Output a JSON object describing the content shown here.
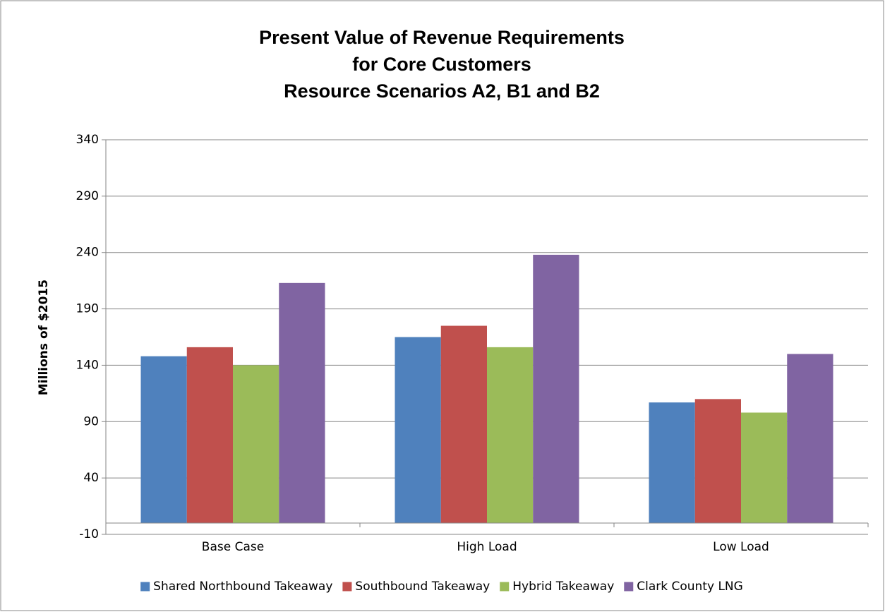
{
  "chart_data": {
    "type": "bar",
    "title": [
      "Present Value of Revenue Requirements",
      "for Core Customers",
      "Resource Scenarios A2, B1 and B2"
    ],
    "y_label": "Millions of $2015",
    "categories": [
      "Base Case",
      "High Load",
      "Low Load"
    ],
    "series": [
      {
        "name": "Shared Northbound Takeaway",
        "color": "#4f81bd",
        "values": [
          148,
          165,
          107
        ]
      },
      {
        "name": "Southbound Takeaway",
        "color": "#c0504d",
        "values": [
          156,
          175,
          110
        ]
      },
      {
        "name": "Hybrid Takeaway",
        "color": "#9bbb59",
        "values": [
          140,
          156,
          98
        ]
      },
      {
        "name": "Clark County LNG",
        "color": "#8064a2",
        "values": [
          213,
          238,
          150
        ]
      }
    ],
    "ylim": [
      -10,
      340
    ],
    "yticks": [
      -10,
      40,
      90,
      140,
      190,
      240,
      290,
      340
    ],
    "grid": true,
    "legend": "bottom"
  }
}
